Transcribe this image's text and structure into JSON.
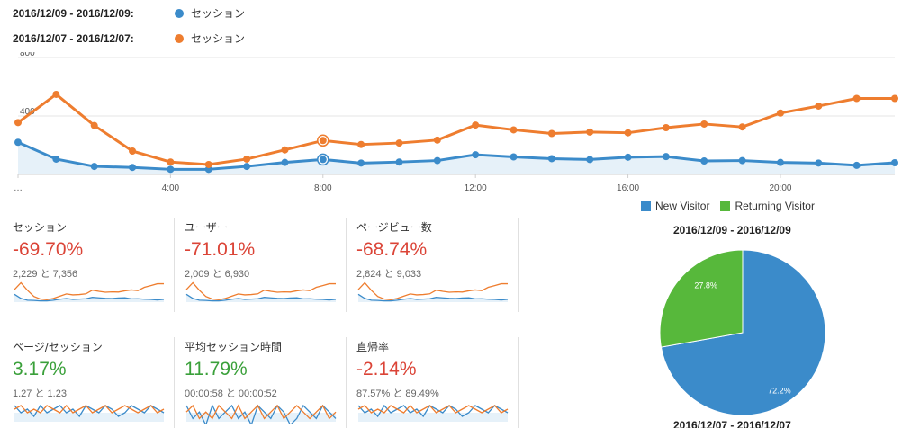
{
  "legend": {
    "rows": [
      {
        "range": "2016/12/09 - 2016/12/09:",
        "metric": "セッション",
        "color": "#3b8bca"
      },
      {
        "range": "2016/12/07 - 2016/12/07:",
        "metric": "セッション",
        "color": "#ee7d2f"
      }
    ]
  },
  "chart_data": {
    "type": "line",
    "y_ticks": [
      "800",
      "400"
    ],
    "ylim": [
      0,
      800
    ],
    "x_tick_labels": [
      "…",
      "4:00",
      "8:00",
      "12:00",
      "16:00",
      "20:00"
    ],
    "x_hours": [
      0,
      1,
      2,
      3,
      4,
      5,
      6,
      7,
      8,
      9,
      10,
      11,
      12,
      13,
      14,
      15,
      16,
      17,
      18,
      19,
      20,
      21,
      22,
      23
    ],
    "series": [
      {
        "name": "2016/12/09 - 2016/12/09",
        "color": "#3b8bca",
        "values": [
          220,
          105,
          55,
          48,
          35,
          35,
          55,
          82,
          102,
          78,
          85,
          95,
          135,
          120,
          108,
          102,
          118,
          122,
          92,
          95,
          82,
          78,
          62,
          80
        ]
      },
      {
        "name": "2016/12/07 - 2016/12/07",
        "color": "#ee7d2f",
        "values": [
          355,
          548,
          335,
          160,
          85,
          68,
          105,
          168,
          232,
          205,
          215,
          235,
          338,
          305,
          280,
          290,
          285,
          320,
          345,
          325,
          420,
          468,
          520,
          520
        ]
      }
    ]
  },
  "metrics": [
    {
      "title": "セッション",
      "change": "-69.70%",
      "sign": "neg",
      "compare": "2,229 と 7,356"
    },
    {
      "title": "ユーザー",
      "change": "-71.01%",
      "sign": "neg",
      "compare": "2,009 と 6,930"
    },
    {
      "title": "ページビュー数",
      "change": "-68.74%",
      "sign": "neg",
      "compare": "2,824 と 9,033"
    },
    {
      "title": "ページ/セッション",
      "change": "3.17%",
      "sign": "pos",
      "compare": "1.27 と 1.23"
    },
    {
      "title": "平均セッション時間",
      "change": "11.79%",
      "sign": "pos",
      "compare": "00:00:58 と 00:00:52"
    },
    {
      "title": "直帰率",
      "change": "-2.14%",
      "sign": "neg",
      "compare": "87.57% と 89.49%"
    }
  ],
  "pie": {
    "legend": [
      {
        "label": "New Visitor",
        "color": "#3b8bca"
      },
      {
        "label": "Returning Visitor",
        "color": "#57b83b"
      }
    ],
    "title": "2016/12/09 - 2016/12/09",
    "title2": "2016/12/07 - 2016/12/07",
    "slices": [
      {
        "label": "New Visitor",
        "value": 72.2,
        "text": "72.2%",
        "color": "#3b8bca"
      },
      {
        "label": "Returning Visitor",
        "value": 27.8,
        "text": "27.8%",
        "color": "#57b83b"
      }
    ]
  }
}
